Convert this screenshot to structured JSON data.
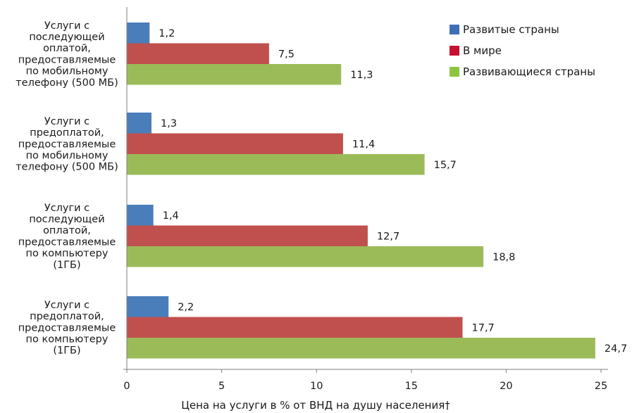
{
  "chart_data": {
    "type": "bar",
    "orientation": "horizontal",
    "categories": [
      [
        "Услуги с",
        "последующей",
        "оплатой,",
        "предоставляемые",
        "по мобильному",
        "телефону (500 МБ)"
      ],
      [
        "Услуги с",
        "предоплатой,",
        "предоставляемые",
        "по мобильному",
        "телефону (500 МБ)"
      ],
      [
        "Услуги с",
        "последующей",
        "оплатой,",
        "предоставляемые",
        "по компьютеру",
        "(1ГБ)"
      ],
      [
        "Услуги с",
        "предоплатой,",
        "предоставляемые",
        "по компьютеру",
        "(1ГБ)"
      ]
    ],
    "series": [
      {
        "name": "Развитые страны",
        "color": "#4a7ebb",
        "values": [
          1.2,
          1.3,
          1.4,
          2.2
        ],
        "labels": [
          "1,2",
          "1,3",
          "1,4",
          "2,2"
        ]
      },
      {
        "name": "В мире",
        "color": "#c0504d",
        "values": [
          7.5,
          11.4,
          12.7,
          17.7
        ],
        "labels": [
          "7,5",
          "11,4",
          "12,7",
          "17,7"
        ]
      },
      {
        "name": "Развивающиеся страны",
        "color": "#9bbb59",
        "values": [
          11.3,
          15.7,
          18.8,
          24.7
        ],
        "labels": [
          "11,3",
          "15,7",
          "18,8",
          "24,7"
        ]
      }
    ],
    "legend_colors": [
      "#3f6fb5",
      "#c8102e",
      "#8cc63f"
    ],
    "xlim": [
      0,
      25
    ],
    "xticks": [
      0,
      5,
      10,
      15,
      20,
      25
    ],
    "xlabel": "Цена на услуги в % от ВНД на душу населения†",
    "legend_position": "top-right",
    "grid": false
  }
}
